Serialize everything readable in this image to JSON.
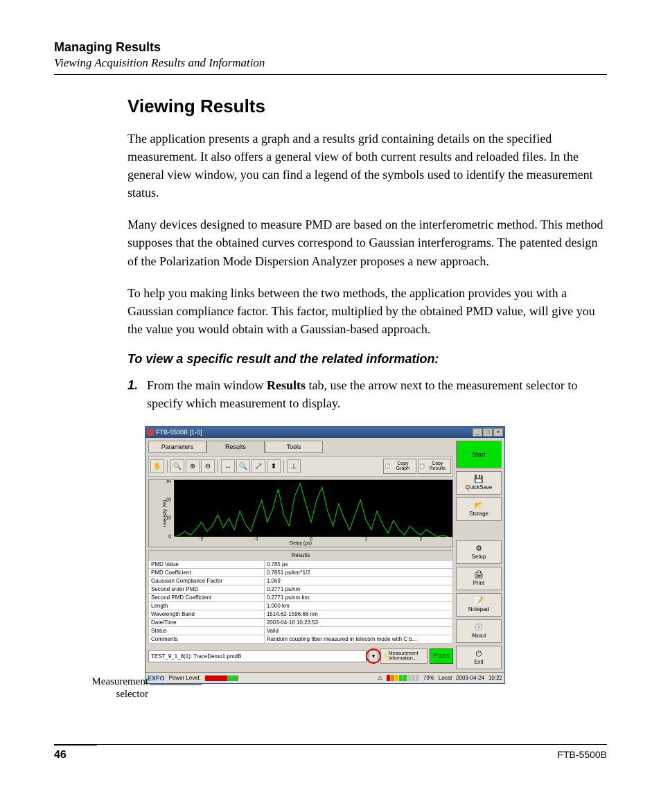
{
  "doc": {
    "header_title": "Managing Results",
    "header_sub": "Viewing Acquisition Results and Information",
    "section_title": "Viewing Results",
    "para1": "The application presents a graph and a results grid containing details on the specified measurement. It also offers a general view of both current results and reloaded files. In the general view window, you can find a legend of the symbols used to identify the measurement status.",
    "para2": "Many devices designed to measure PMD are based on the interferometric method. This method supposes that the obtained curves correspond to Gaussian interferograms. The patented design of the Polarization Mode Dispersion Analyzer proposes a new approach.",
    "para3": "To help you making links between the two methods, the application provides you with a Gaussian compliance factor. This factor, multiplied by the obtained PMD value, will give you the value you would obtain with a Gaussian-based approach.",
    "instr_title": "To view a specific result and the related information:",
    "step1_num": "1.",
    "step1_pre": "From the main window ",
    "step1_bold": "Results",
    "step1_post": " tab, use the arrow next to the measurement selector to specify which measurement to display.",
    "page_num": "46",
    "footer_model": "FTB-5500B",
    "callout": "Measurement selector"
  },
  "app": {
    "title": "FTB-5500B [1-0]",
    "tabs": {
      "parameters": "Parameters",
      "results": "Results",
      "tools": "Tools"
    },
    "toolbar": {
      "copy_graph": "Copy Graph",
      "copy_results": "Copy Results"
    },
    "chart": {
      "ylabel": "Intensity (%)",
      "xlabel": "Delay (ps)",
      "yticks": [
        "0",
        "10",
        "20",
        "30"
      ],
      "xticks": [
        "-2",
        "-1",
        "0",
        "1",
        "2"
      ],
      "xlim": [
        -2.5,
        2.5
      ],
      "ylim": [
        0,
        30
      ],
      "background_color": "#000000",
      "line_color": "#00d000",
      "axis_color": "#00d000",
      "points": [
        [
          -2.5,
          0
        ],
        [
          -2.4,
          1
        ],
        [
          -2.3,
          3
        ],
        [
          -2.2,
          1
        ],
        [
          -2.1,
          4
        ],
        [
          -2.0,
          8
        ],
        [
          -1.9,
          3
        ],
        [
          -1.8,
          6
        ],
        [
          -1.7,
          12
        ],
        [
          -1.6,
          5
        ],
        [
          -1.5,
          10
        ],
        [
          -1.4,
          4
        ],
        [
          -1.3,
          14
        ],
        [
          -1.2,
          7
        ],
        [
          -1.1,
          3
        ],
        [
          -1.0,
          12
        ],
        [
          -0.9,
          20
        ],
        [
          -0.8,
          8
        ],
        [
          -0.7,
          15
        ],
        [
          -0.6,
          26
        ],
        [
          -0.5,
          12
        ],
        [
          -0.4,
          6
        ],
        [
          -0.3,
          22
        ],
        [
          -0.2,
          29
        ],
        [
          -0.1,
          18
        ],
        [
          0.0,
          8
        ],
        [
          0.1,
          20
        ],
        [
          0.2,
          27
        ],
        [
          0.3,
          14
        ],
        [
          0.4,
          6
        ],
        [
          0.5,
          18
        ],
        [
          0.6,
          10
        ],
        [
          0.7,
          4
        ],
        [
          0.8,
          12
        ],
        [
          0.9,
          20
        ],
        [
          1.0,
          9
        ],
        [
          1.1,
          4
        ],
        [
          1.2,
          14
        ],
        [
          1.3,
          7
        ],
        [
          1.4,
          2
        ],
        [
          1.5,
          9
        ],
        [
          1.6,
          4
        ],
        [
          1.7,
          1
        ],
        [
          1.8,
          6
        ],
        [
          1.9,
          3
        ],
        [
          2.0,
          1
        ],
        [
          2.1,
          4
        ],
        [
          2.2,
          2
        ],
        [
          2.3,
          0
        ],
        [
          2.4,
          1
        ],
        [
          2.5,
          0
        ]
      ]
    },
    "results_header": "Results",
    "results": [
      {
        "k": "PMD Value",
        "v": "0.785 ps"
      },
      {
        "k": "PMD Coefficient",
        "v": "0.7851 ps/km^1/2"
      },
      {
        "k": "Gaussian Compliance Factor",
        "v": "1.069"
      },
      {
        "k": "Second order PMD",
        "v": "0.2771 ps/nm"
      },
      {
        "k": "Second PMD Coefficient",
        "v": "0.2771 ps/nm.km"
      },
      {
        "k": "Length",
        "v": "1.000 km"
      },
      {
        "k": "Wavelength Band",
        "v": "1514.62-1596.66 nm"
      },
      {
        "k": "Date/Time",
        "v": "2003-04-16 10:23:53"
      },
      {
        "k": "Status",
        "v": "Valid"
      },
      {
        "k": "Comments",
        "v": "Random coupling fiber measured in telecom mode with C b..."
      }
    ],
    "selector_value": "TEST_9_1_8(1): TraceDemo1.pmdB",
    "meas_info_btn": "Measurement Information...",
    "pass_label": "Pass",
    "side": {
      "start": "Start",
      "quicksave": "QuickSave",
      "storage": "Storage",
      "setup": "Setup",
      "print": "Print",
      "notepad": "Notepad",
      "about": "About",
      "exit": "Exit"
    },
    "status": {
      "exfo": "EXFO",
      "power_label": "Power Level:",
      "power_colors": [
        "#d00000",
        "#d00000",
        "#d00000",
        "#d00000",
        "#d00000",
        "#d00000",
        "#d00000",
        "#d00000",
        "#30c030",
        "#30c030",
        "#30c030",
        "#30c030"
      ],
      "status_colors": [
        "#d00000",
        "#e08000",
        "#e0c000",
        "#30c030",
        "#30c030",
        "#c0c0c0",
        "#c0c0c0",
        "#c0c0c0"
      ],
      "pct": "79%",
      "local": "Local",
      "date": "2003-04-24",
      "time": "10:22"
    }
  }
}
